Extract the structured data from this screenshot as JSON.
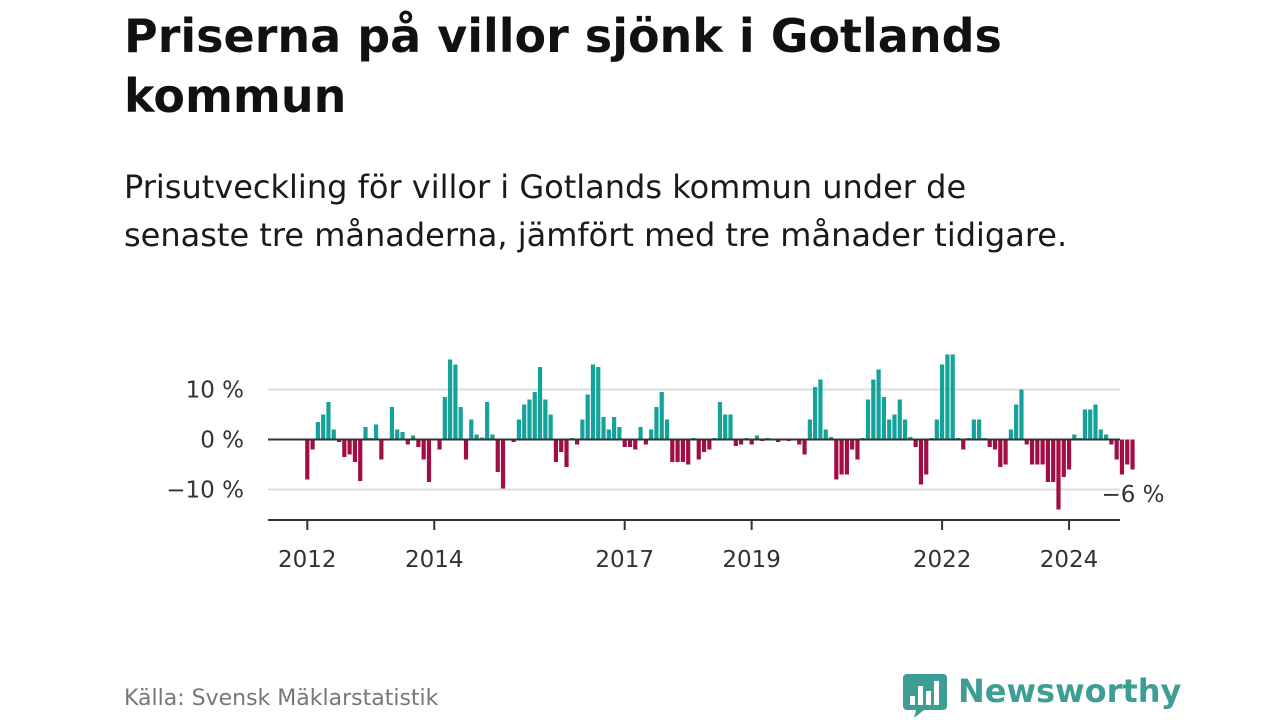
{
  "header": {
    "title": "Priserna på villor sjönk i Gotlands kommun",
    "subtitle": "Prisutveckling för villor i Gotlands kommun under de senaste tre månaderna, jämfört med tre månader tidigare."
  },
  "footer": {
    "source": "Källa: Svensk Mäklarstatistik",
    "brand": "Newsworthy"
  },
  "colors": {
    "positive": "#14a39a",
    "negative": "#a30d45",
    "brand": "#3e9e95"
  },
  "chart_data": {
    "type": "bar",
    "frequency": "monthly",
    "start": "2012-01",
    "ylim": [
      -16,
      18
    ],
    "y_ticks": [
      10,
      0,
      -10
    ],
    "y_tick_labels": [
      "10 %",
      "0 %",
      "−10 %"
    ],
    "x_tick_labels": [
      "2012",
      "2014",
      "2017",
      "2019",
      "2022",
      "2024"
    ],
    "grid": true,
    "annotation": {
      "text": "−6 %",
      "target": "last"
    },
    "values": [
      -8,
      -2,
      3.5,
      5,
      7.5,
      2,
      -0.5,
      -3.5,
      -3,
      -4.5,
      -8.3,
      2.5,
      0.3,
      3,
      -4,
      0,
      6.5,
      2,
      1.5,
      -1,
      0.8,
      -1.5,
      -4,
      -8.5,
      0,
      -2,
      8.5,
      16,
      15,
      6.5,
      -4,
      4,
      1,
      0.4,
      7.5,
      1,
      -6.5,
      -9.8,
      0,
      -0.5,
      4,
      7,
      8,
      9.5,
      14.5,
      8,
      5,
      -4.5,
      -2.5,
      -5.5,
      0.3,
      -1,
      4,
      9,
      15,
      14.5,
      4.5,
      2,
      4.5,
      2.5,
      -1.5,
      -1.5,
      -2,
      2.5,
      -1,
      2,
      6.5,
      9.5,
      4,
      -4.5,
      -4.5,
      -4.5,
      -5,
      0.3,
      -4,
      -2.5,
      -2,
      0.3,
      7.5,
      5,
      5,
      -1.3,
      -1,
      0.3,
      -1,
      0.8,
      -0.3,
      0.3,
      0.2,
      -0.5,
      -0.2,
      -0.3,
      0.2,
      -1,
      -3,
      4,
      10.5,
      12,
      2,
      0.5,
      -8,
      -7,
      -7,
      -2,
      -4,
      0.3,
      8,
      12,
      14,
      8.5,
      4,
      5,
      8,
      4,
      0.5,
      -1.5,
      -9,
      -7,
      0.3,
      4,
      15,
      17,
      17,
      0.3,
      -2,
      0.3,
      4,
      4,
      0.3,
      -1.5,
      -2,
      -5.5,
      -5,
      2,
      7,
      10,
      -1,
      -5,
      -5,
      -5,
      -8.5,
      -8.5,
      -14,
      -7.5,
      -6,
      1,
      0.3,
      6,
      6,
      7,
      2,
      1,
      -1,
      -4,
      -7,
      -5,
      -6
    ]
  }
}
